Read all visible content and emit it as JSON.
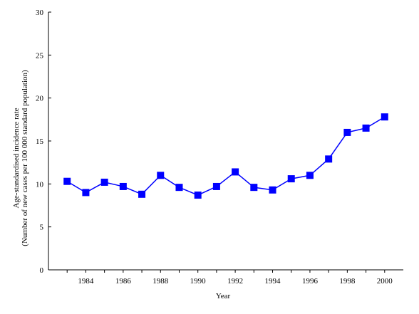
{
  "chart_data": {
    "type": "line",
    "title": "",
    "xlabel": "Year",
    "ylabel": "Age-standardised incidence rate",
    "ylabel_line2": "(Number of new cases per 100 000 standard population)",
    "xlim": [
      1982,
      2001
    ],
    "ylim": [
      0,
      30
    ],
    "x_ticks": [
      1984,
      1986,
      1988,
      1990,
      1992,
      1994,
      1996,
      1998,
      2000
    ],
    "y_ticks": [
      0,
      5,
      10,
      15,
      20,
      25,
      30
    ],
    "grid": false,
    "legend": "none",
    "series": [
      {
        "color": "#0000ff",
        "marker": "square",
        "x": [
          1983,
          1984,
          1985,
          1986,
          1987,
          1988,
          1989,
          1990,
          1991,
          1992,
          1993,
          1994,
          1995,
          1996,
          1997,
          1998,
          1999,
          2000
        ],
        "values": [
          10.3,
          9.0,
          10.2,
          9.7,
          8.8,
          11.0,
          9.6,
          8.7,
          9.7,
          11.4,
          9.6,
          9.3,
          10.6,
          11.0,
          12.9,
          16.0,
          16.5,
          17.8
        ]
      }
    ]
  }
}
